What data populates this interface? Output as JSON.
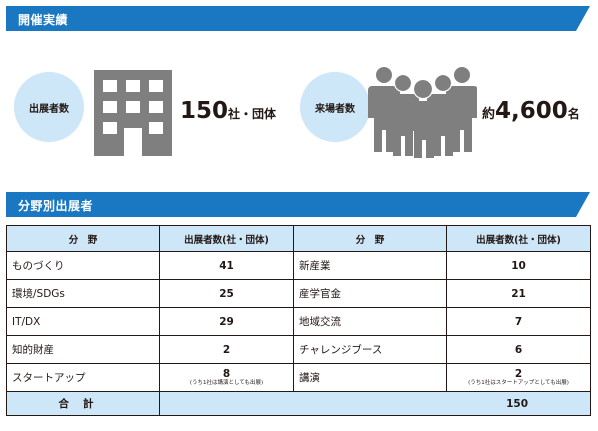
{
  "sections": {
    "results_title": "開催実績",
    "exhibitors_by_field_title": "分野別出展者"
  },
  "stats": {
    "exhibitors_label": "出展者数",
    "exhibitors_value": "150",
    "exhibitors_unit": "社・団体",
    "visitors_label": "来場者数",
    "visitors_prefix": "約",
    "visitors_value": "4,600",
    "visitors_unit": "名"
  },
  "table": {
    "headers": [
      "分　野",
      "出展者数(社・団体)",
      "分　野",
      "出展者数(社・団体)"
    ],
    "rows": [
      {
        "field_a": "ものづくり",
        "count_a": "41",
        "note_a": "",
        "field_b": "新産業",
        "count_b": "10",
        "note_b": ""
      },
      {
        "field_a": "環境/SDGs",
        "count_a": "25",
        "note_a": "",
        "field_b": "産学官金",
        "count_b": "21",
        "note_b": ""
      },
      {
        "field_a": "IT/DX",
        "count_a": "29",
        "note_a": "",
        "field_b": "地域交流",
        "count_b": "7",
        "note_b": ""
      },
      {
        "field_a": "知的財産",
        "count_a": "2",
        "note_a": "",
        "field_b": "チャレンジブース",
        "count_b": "6",
        "note_b": ""
      },
      {
        "field_a": "スタートアップ",
        "count_a": "8",
        "note_a": "(うち1社は講演としても出展)",
        "field_b": "講演",
        "count_b": "2",
        "note_b": "(うち1社はスタートアップとしても出展)"
      }
    ],
    "total_label": "合計",
    "total_value": "150"
  },
  "colors": {
    "banner": "#1a78c2",
    "accent_light": "#cde6f8",
    "icon_gray": "#7f7f80",
    "text": "#231815"
  }
}
